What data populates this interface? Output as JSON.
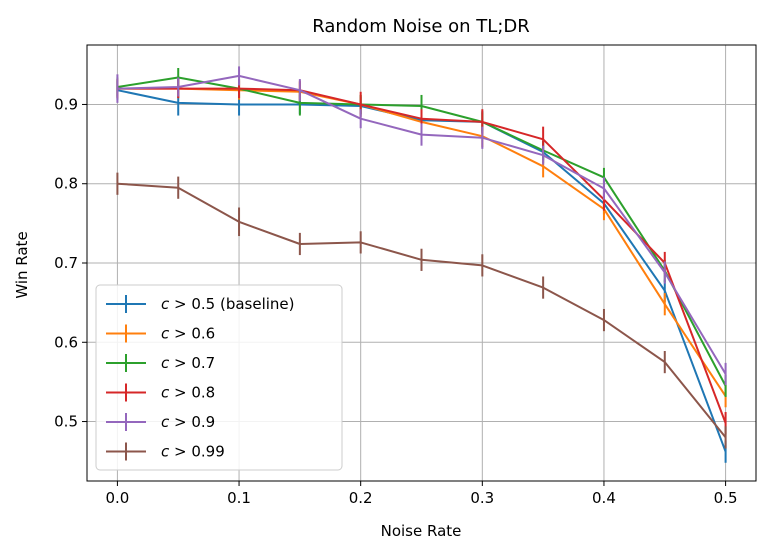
{
  "chart_data": {
    "type": "line",
    "title": "Random Noise on TL;DR",
    "xlabel": "Noise Rate",
    "ylabel": "Win Rate",
    "xlim": [
      -0.025,
      0.525
    ],
    "ylim": [
      0.425,
      0.975
    ],
    "xticks": [
      0.0,
      0.1,
      0.2,
      0.3,
      0.4,
      0.5
    ],
    "xtick_labels": [
      "0.0",
      "0.1",
      "0.2",
      "0.3",
      "0.4",
      "0.5"
    ],
    "yticks": [
      0.5,
      0.6,
      0.7,
      0.8,
      0.9
    ],
    "ytick_labels": [
      "0.5",
      "0.6",
      "0.7",
      "0.8",
      "0.9"
    ],
    "grid": true,
    "legend_position": "lower-left",
    "x": [
      0.0,
      0.05,
      0.1,
      0.15,
      0.2,
      0.25,
      0.3,
      0.35,
      0.4,
      0.45,
      0.5
    ],
    "series": [
      {
        "name": "c > 0.5 (baseline)",
        "label_prefix": "c",
        "label_op": " > ",
        "label_rest": "0.5 (baseline)",
        "color": "#1f77b4",
        "values": [
          0.918,
          0.902,
          0.9,
          0.9,
          0.898,
          0.88,
          0.878,
          0.84,
          0.775,
          0.665,
          0.462
        ],
        "errors": [
          0.012,
          0.016,
          0.014,
          0.012,
          0.012,
          0.012,
          0.014,
          0.014,
          0.014,
          0.014,
          0.014
        ]
      },
      {
        "name": "c > 0.6",
        "label_prefix": "c",
        "label_op": " > ",
        "label_rest": "0.6",
        "color": "#ff7f0e",
        "values": [
          0.92,
          0.92,
          0.918,
          0.916,
          0.9,
          0.878,
          0.86,
          0.822,
          0.768,
          0.648,
          0.532
        ],
        "errors": [
          0.012,
          0.012,
          0.012,
          0.012,
          0.012,
          0.012,
          0.014,
          0.014,
          0.014,
          0.014,
          0.014
        ]
      },
      {
        "name": "c > 0.7",
        "label_prefix": "c",
        "label_op": " > ",
        "label_rest": "0.7",
        "color": "#2ca02c",
        "values": [
          0.922,
          0.934,
          0.92,
          0.902,
          0.9,
          0.898,
          0.878,
          0.842,
          0.808,
          0.69,
          0.545
        ],
        "errors": [
          0.012,
          0.012,
          0.012,
          0.016,
          0.012,
          0.014,
          0.012,
          0.012,
          0.012,
          0.014,
          0.014
        ]
      },
      {
        "name": "c > 0.8",
        "label_prefix": "c",
        "label_op": " > ",
        "label_rest": "0.8",
        "color": "#d62728",
        "values": [
          0.92,
          0.92,
          0.92,
          0.918,
          0.9,
          0.882,
          0.878,
          0.856,
          0.78,
          0.7,
          0.498
        ],
        "errors": [
          0.012,
          0.012,
          0.012,
          0.012,
          0.016,
          0.012,
          0.016,
          0.016,
          0.014,
          0.014,
          0.014
        ]
      },
      {
        "name": "c > 0.9",
        "label_prefix": "c",
        "label_op": " > ",
        "label_rest": "0.9",
        "color": "#9467bd",
        "values": [
          0.92,
          0.922,
          0.936,
          0.918,
          0.882,
          0.862,
          0.858,
          0.836,
          0.794,
          0.688,
          0.56
        ],
        "errors": [
          0.018,
          0.012,
          0.012,
          0.014,
          0.012,
          0.014,
          0.014,
          0.012,
          0.014,
          0.014,
          0.014
        ]
      },
      {
        "name": "c > 0.99",
        "label_prefix": "c",
        "label_op": " > ",
        "label_rest": "0.99",
        "color": "#8c564b",
        "values": [
          0.8,
          0.795,
          0.752,
          0.724,
          0.726,
          0.704,
          0.697,
          0.669,
          0.628,
          0.575,
          0.48
        ],
        "errors": [
          0.014,
          0.014,
          0.018,
          0.014,
          0.014,
          0.014,
          0.014,
          0.014,
          0.014,
          0.014,
          0.014
        ]
      }
    ]
  }
}
